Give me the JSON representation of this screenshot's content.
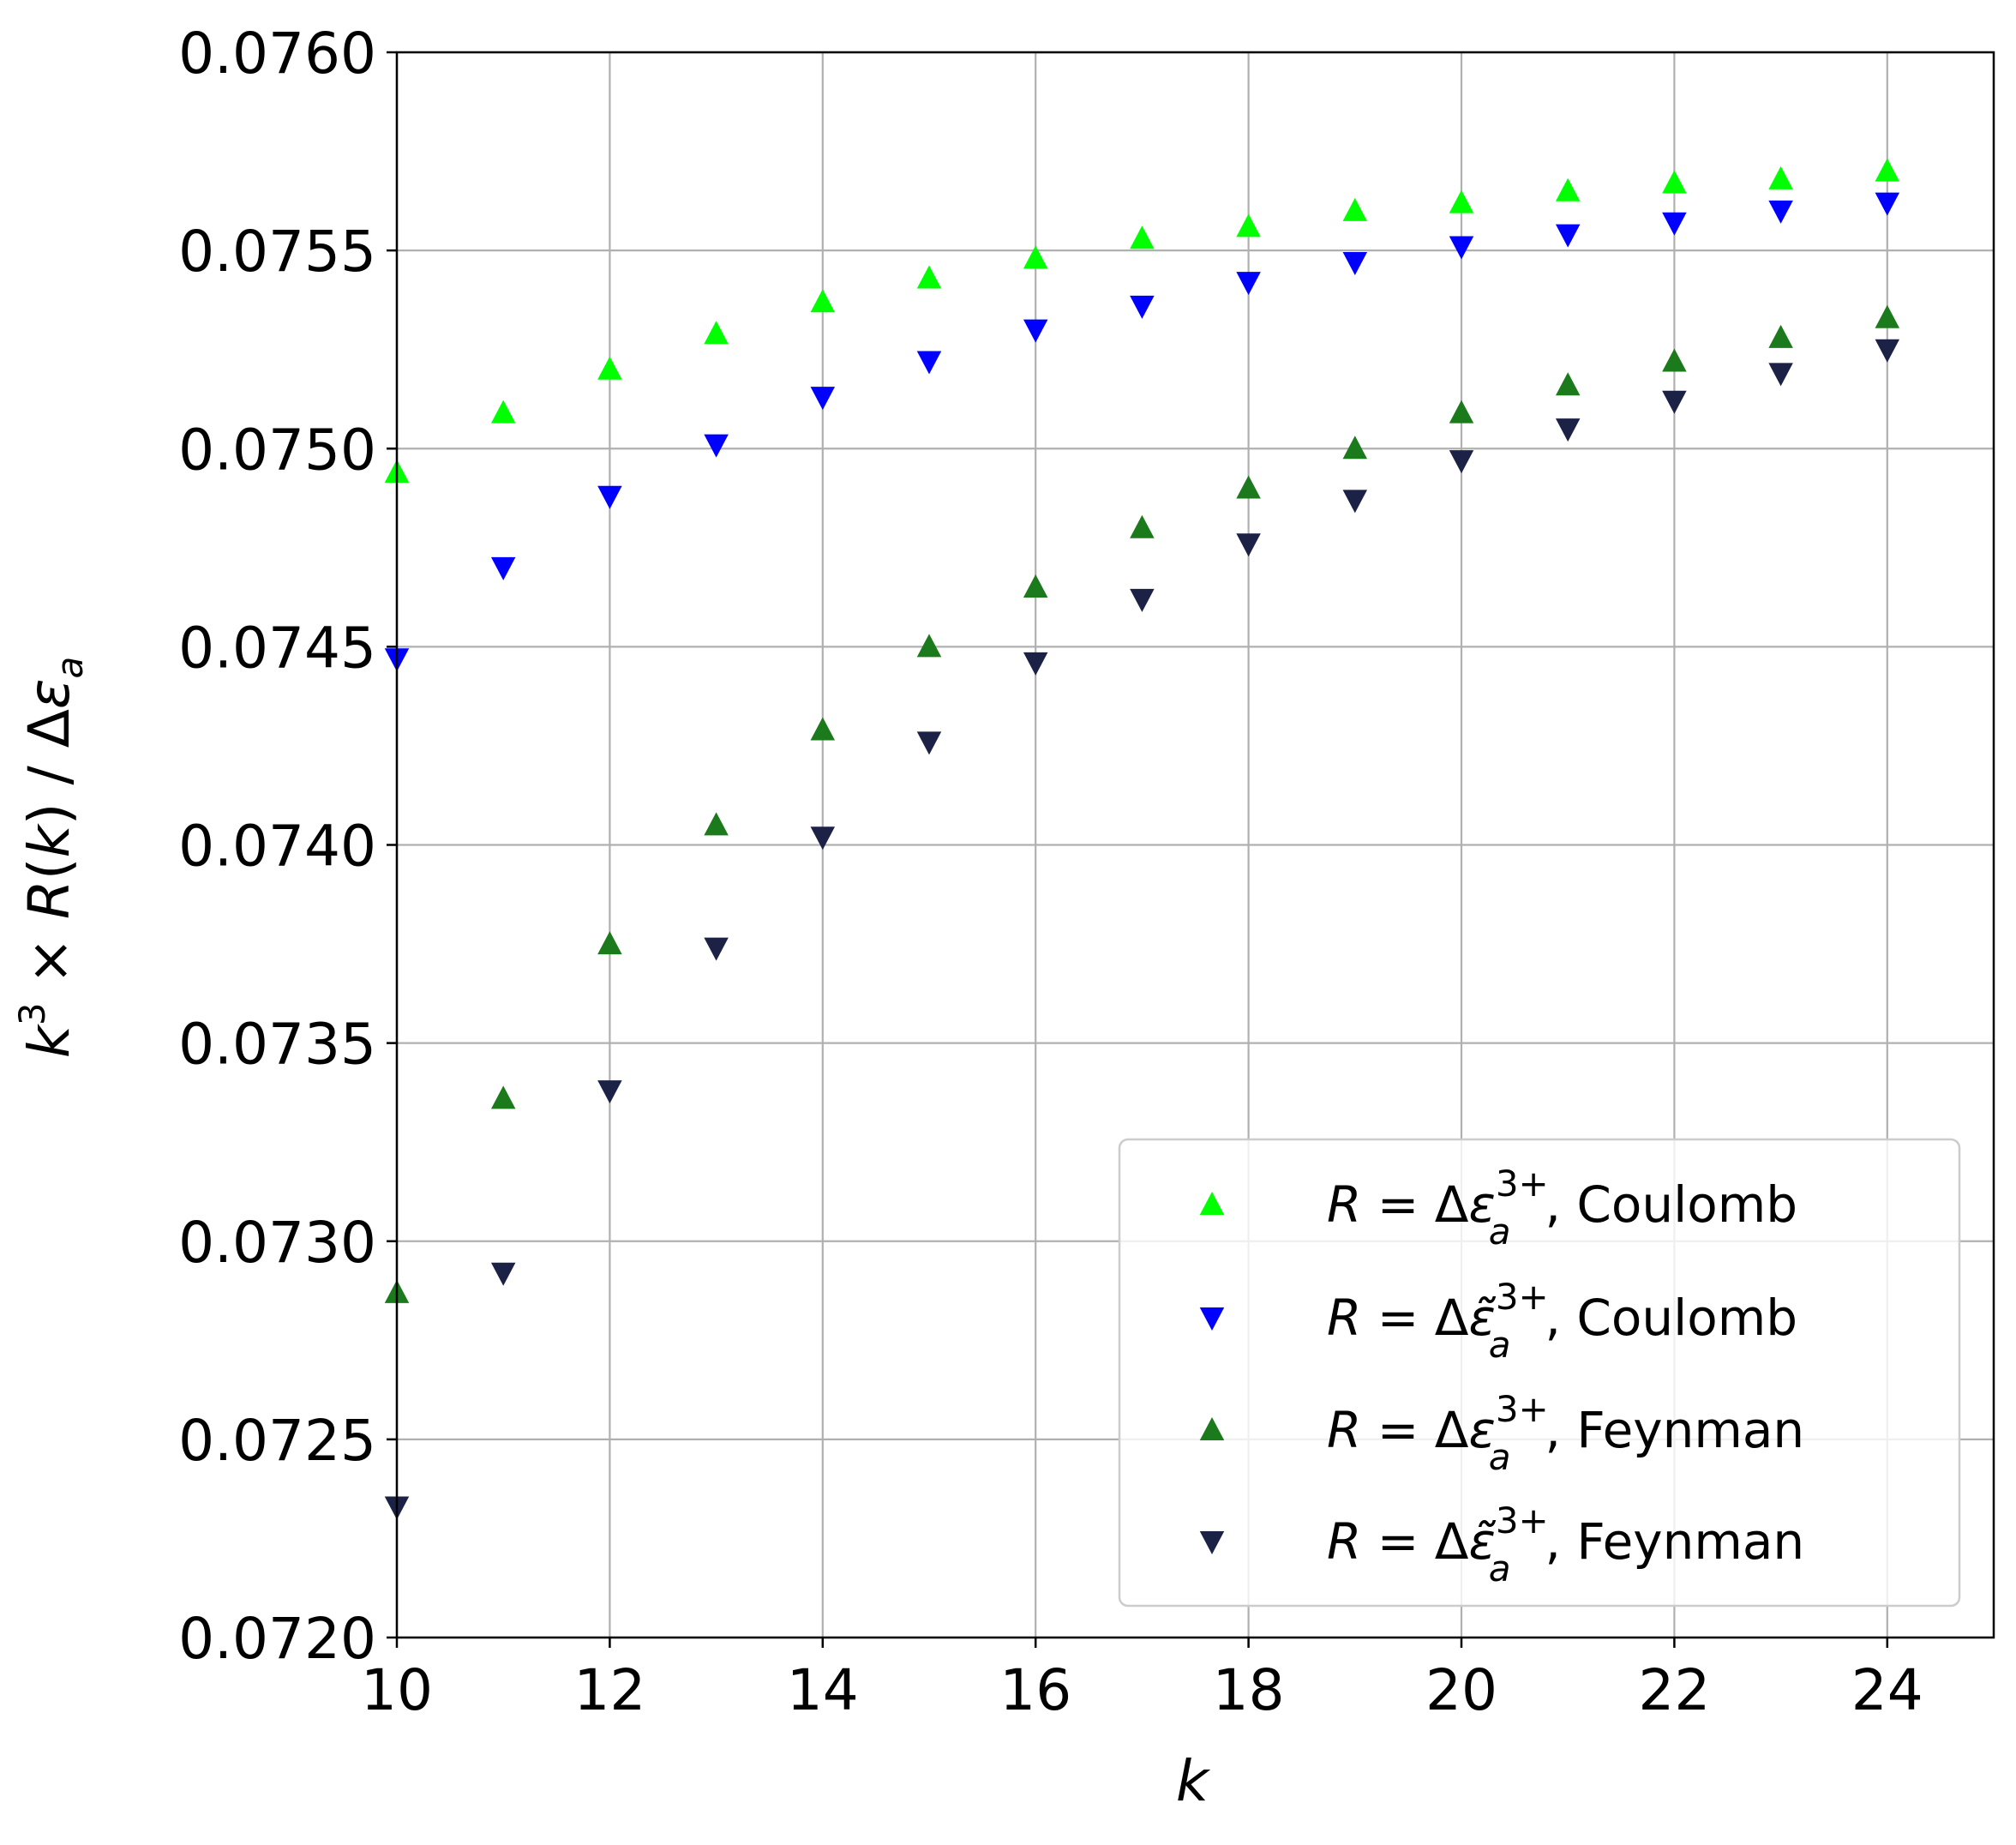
{
  "chart_data": {
    "type": "scatter",
    "title": "",
    "xlabel": "k",
    "ylabel": {
      "k": "k",
      "k_sup": "3",
      "times": " × ",
      "R": "R",
      "open_k": "(",
      "k2": "k",
      "close_slash": ") / Δ",
      "eps": "ε",
      "eps_sub": "a"
    },
    "xlim": [
      10,
      25
    ],
    "ylim": [
      0.072,
      0.076
    ],
    "xticks": [
      "10",
      "12",
      "14",
      "16",
      "18",
      "20",
      "22",
      "24"
    ],
    "xtick_values": [
      10,
      12,
      14,
      16,
      18,
      20,
      22,
      24
    ],
    "yticks": [
      "0.0720",
      "0.0725",
      "0.0730",
      "0.0735",
      "0.0740",
      "0.0745",
      "0.0750",
      "0.0755",
      "0.0760"
    ],
    "ytick_values": [
      0.072,
      0.0725,
      0.073,
      0.0735,
      0.074,
      0.0745,
      0.075,
      0.0755,
      0.076
    ],
    "grid": true,
    "legend_position": "lower-right",
    "x": [
      10,
      11,
      12,
      13,
      14,
      15,
      16,
      17,
      18,
      19,
      20,
      21,
      22,
      23,
      24
    ],
    "series": [
      {
        "name": "R = Δε_a^{3+}, Coulomb",
        "label": {
          "R": "R",
          "eq": " = Δ",
          "eps": "ε",
          "sub": "a",
          "sup": "3+",
          "method": ", Coulomb"
        },
        "marker": "triangle-up",
        "color": "#00ff00",
        "values": [
          0.07494,
          0.07509,
          0.0752,
          0.07529,
          0.07537,
          0.07543,
          0.07548,
          0.07553,
          0.07556,
          0.0756,
          0.07562,
          0.07565,
          0.07567,
          0.07568,
          0.0757
        ]
      },
      {
        "name": "R = Δε̃_a^{3+}, Coulomb",
        "label": {
          "R": "R",
          "eq": " = Δ",
          "eps": "ε̃",
          "sub": "a",
          "sup": "3+",
          "method": ", Coulomb"
        },
        "marker": "triangle-down",
        "color": "#0000ff",
        "values": [
          0.07447,
          0.0747,
          0.07488,
          0.07501,
          0.07513,
          0.07522,
          0.0753,
          0.07536,
          0.07542,
          0.07547,
          0.07551,
          0.07554,
          0.07557,
          0.0756,
          0.07562
        ]
      },
      {
        "name": "R = Δε_a^{3+}, Feynman",
        "label": {
          "R": "R",
          "eq": " = Δ",
          "eps": "ε",
          "sub": "a",
          "sup": "3+",
          "method": ", Feynman"
        },
        "marker": "triangle-up",
        "color": "#1b7a1b",
        "values": [
          0.07287,
          0.07336,
          0.07375,
          0.07405,
          0.07429,
          0.0745,
          0.07465,
          0.0748,
          0.0749,
          0.075,
          0.07509,
          0.07516,
          0.07522,
          0.07528,
          0.07533
        ]
      },
      {
        "name": "R = Δε̃_a^{3+}, Feynman",
        "label": {
          "R": "R",
          "eq": " = Δ",
          "eps": "ε̃",
          "sub": "a",
          "sup": "3+",
          "method": ", Feynman"
        },
        "marker": "triangle-down",
        "color": "#1c2146",
        "values": [
          0.07233,
          0.07292,
          0.07338,
          0.07374,
          0.07402,
          0.07426,
          0.07446,
          0.07462,
          0.07476,
          0.07487,
          0.07497,
          0.07505,
          0.07512,
          0.07519,
          0.07525
        ]
      }
    ]
  }
}
